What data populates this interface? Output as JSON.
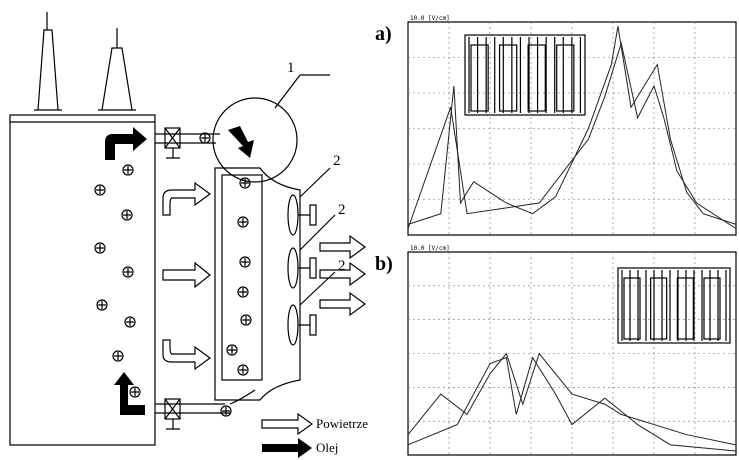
{
  "labels": {
    "radiator": "1",
    "fans": [
      "2",
      "2",
      "2"
    ]
  },
  "panels": [
    {
      "label": "a)",
      "scale": "10.0 [V/cm]"
    },
    {
      "label": "b)",
      "scale": "10.0 [V/cm]"
    }
  ],
  "legend": [
    {
      "label": "Powietrze"
    },
    {
      "label": "Olej"
    }
  ]
}
